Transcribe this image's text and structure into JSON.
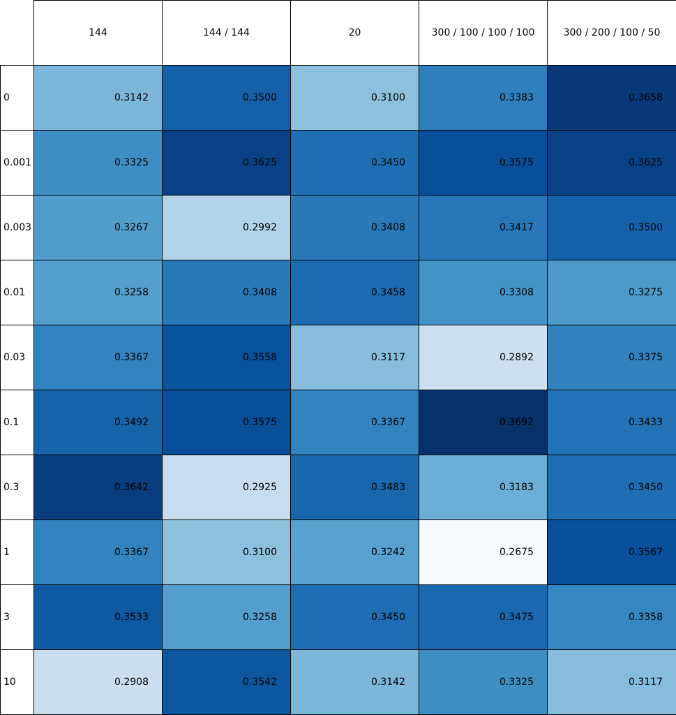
{
  "chart_data": {
    "type": "heatmap",
    "columns": [
      "144",
      "144 / 144",
      "20",
      "300 / 100 / 100 / 100",
      "300 / 200 / 100 / 50"
    ],
    "rows": [
      "0",
      "0.001",
      "0.003",
      "0.01",
      "0.03",
      "0.1",
      "0.3",
      "1",
      "3",
      "10"
    ],
    "cells": [
      [
        "0.3142",
        "0.3500",
        "0.3100",
        "0.3383",
        "0.3658"
      ],
      [
        "0.3325",
        "0.3625",
        "0.3450",
        "0.3575",
        "0.3625"
      ],
      [
        "0.3267",
        "0.2992",
        "0.3408",
        "0.3417",
        "0.3500"
      ],
      [
        "0.3258",
        "0.3408",
        "0.3458",
        "0.3308",
        "0.3275"
      ],
      [
        "0.3367",
        "0.3558",
        "0.3117",
        "0.2892",
        "0.3375"
      ],
      [
        "0.3492",
        "0.3575",
        "0.3367",
        "0.3692",
        "0.3433"
      ],
      [
        "0.3642",
        "0.2925",
        "0.3483",
        "0.3183",
        "0.3450"
      ],
      [
        "0.3367",
        "0.3100",
        "0.3242",
        "0.2675",
        "0.3567"
      ],
      [
        "0.3533",
        "0.3258",
        "0.3450",
        "0.3475",
        "0.3358"
      ],
      [
        "0.2908",
        "0.3542",
        "0.3142",
        "0.3325",
        "0.3117"
      ]
    ],
    "colormap": "Blues",
    "color_range": [
      0.2675,
      0.3692
    ],
    "colors": {
      "grid_line": "#000000",
      "header_bg": "#ffffff",
      "low": "#f7fbff",
      "high": "#08306b"
    }
  }
}
